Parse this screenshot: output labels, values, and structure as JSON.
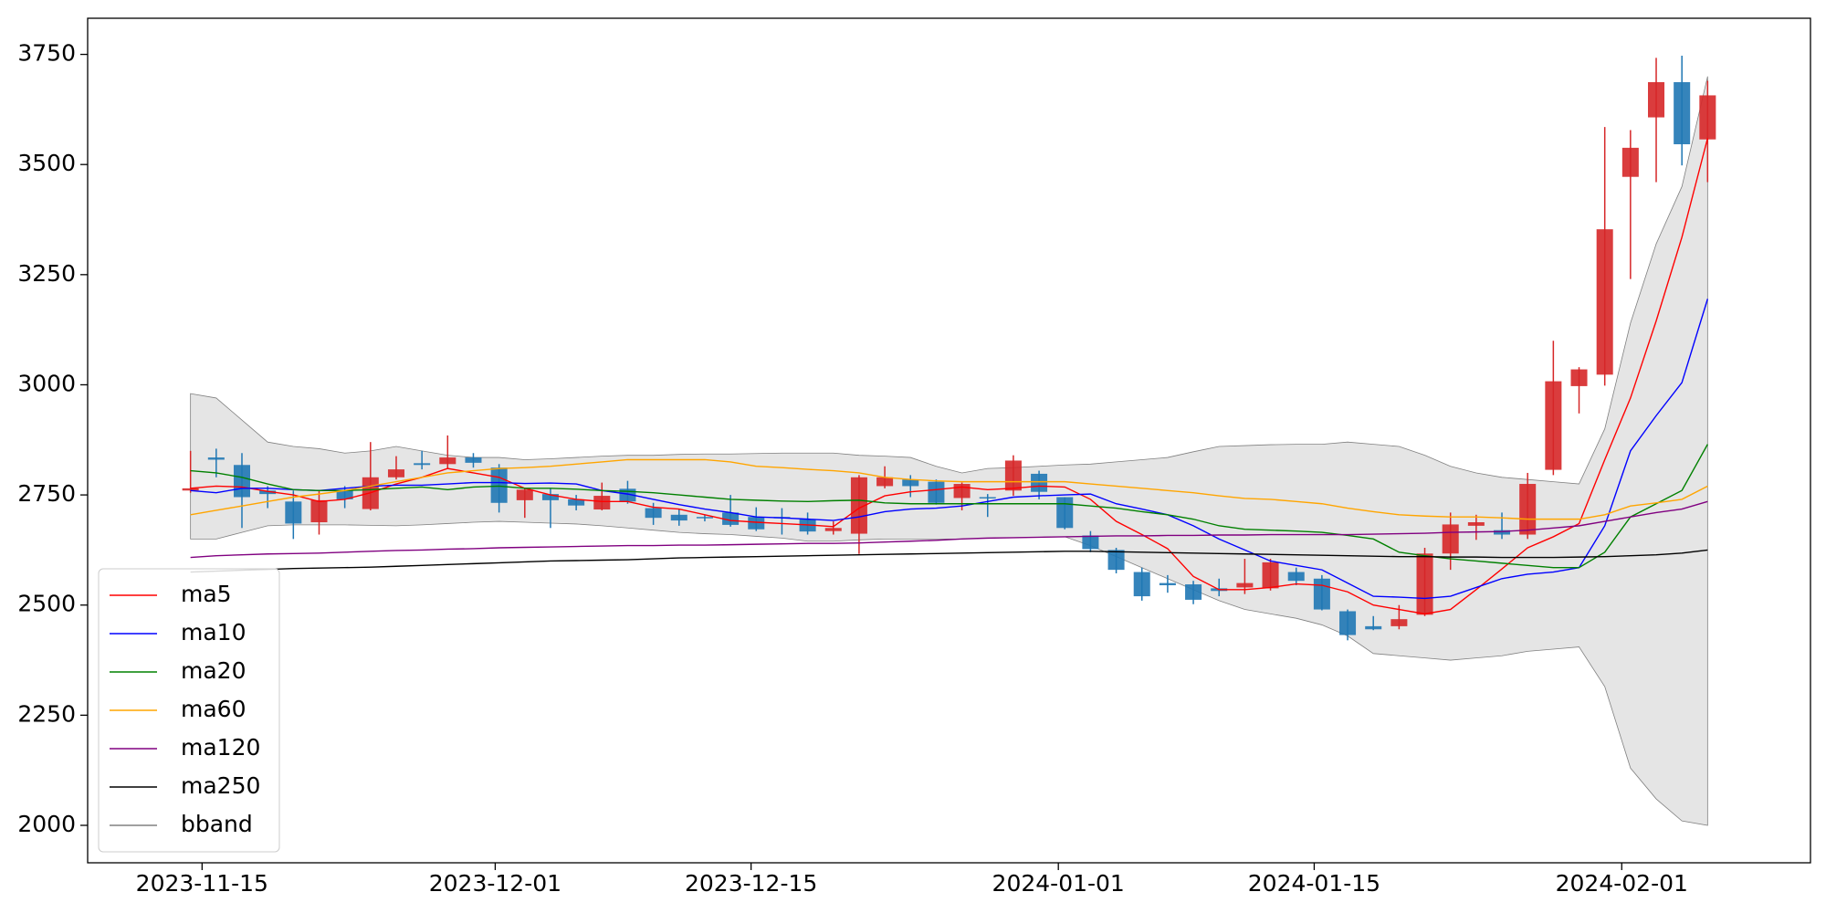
{
  "chart_data": {
    "type": "candlestick",
    "x": [
      0,
      1,
      2,
      3,
      4,
      5,
      6,
      7,
      8,
      9,
      10,
      11,
      12,
      13,
      14,
      15,
      16,
      17,
      18,
      19,
      20,
      21,
      22,
      23,
      24,
      25,
      26,
      27,
      28,
      29,
      30,
      31,
      32,
      33,
      34,
      35,
      36,
      37,
      38,
      39,
      40,
      41,
      42,
      43,
      44,
      45,
      46,
      47,
      48,
      49,
      50,
      51,
      52,
      53,
      54,
      55,
      56,
      57,
      58,
      59
    ],
    "open": [
      2760,
      2835,
      2818,
      2760,
      2735,
      2688,
      2760,
      2718,
      2790,
      2822,
      2820,
      2835,
      2812,
      2738,
      2752,
      2740,
      2717,
      2764,
      2720,
      2705,
      2700,
      2710,
      2700,
      2700,
      2695,
      2668,
      2662,
      2770,
      2785,
      2780,
      2743,
      2745,
      2760,
      2798,
      2745,
      2658,
      2625,
      2575,
      2550,
      2547,
      2538,
      2540,
      2538,
      2575,
      2560,
      2486,
      2452,
      2452,
      2478,
      2617,
      2680,
      2670,
      2660,
      2807,
      2997,
      3023,
      3472,
      3607,
      3687,
      3557
    ],
    "high": [
      2850,
      2855,
      2845,
      2770,
      2760,
      2760,
      2770,
      2870,
      2838,
      2850,
      2885,
      2845,
      2820,
      2765,
      2765,
      2750,
      2778,
      2782,
      2732,
      2718,
      2705,
      2750,
      2722,
      2720,
      2710,
      2690,
      2795,
      2815,
      2795,
      2785,
      2778,
      2752,
      2840,
      2805,
      2745,
      2668,
      2630,
      2585,
      2568,
      2555,
      2560,
      2605,
      2605,
      2585,
      2568,
      2490,
      2475,
      2500,
      2630,
      2710,
      2705,
      2710,
      2800,
      3100,
      3040,
      3585,
      3578,
      3742,
      3747,
      3690
    ],
    "low": [
      2755,
      2790,
      2675,
      2720,
      2650,
      2660,
      2720,
      2715,
      2785,
      2808,
      2810,
      2812,
      2710,
      2698,
      2675,
      2715,
      2715,
      2730,
      2682,
      2680,
      2690,
      2678,
      2668,
      2660,
      2660,
      2660,
      2616,
      2765,
      2745,
      2728,
      2715,
      2700,
      2748,
      2740,
      2672,
      2620,
      2572,
      2510,
      2528,
      2502,
      2520,
      2525,
      2533,
      2545,
      2488,
      2420,
      2443,
      2445,
      2475,
      2580,
      2648,
      2650,
      2650,
      2795,
      2935,
      2998,
      3240,
      3460,
      3498,
      3460
    ],
    "close": [
      2765,
      2830,
      2745,
      2752,
      2685,
      2738,
      2740,
      2790,
      2808,
      2818,
      2835,
      2823,
      2732,
      2762,
      2738,
      2726,
      2748,
      2735,
      2698,
      2692,
      2697,
      2682,
      2672,
      2697,
      2667,
      2675,
      2790,
      2790,
      2770,
      2732,
      2775,
      2742,
      2828,
      2757,
      2675,
      2627,
      2580,
      2520,
      2545,
      2512,
      2532,
      2550,
      2597,
      2555,
      2490,
      2432,
      2445,
      2468,
      2617,
      2683,
      2688,
      2660,
      2775,
      3008,
      3035,
      3353,
      3538,
      3687,
      3546,
      3657
    ],
    "up_color": "#d62728",
    "down_color": "#1f77b4",
    "series": [
      {
        "name": "ma5",
        "color": "#ff0000",
        "values": [
          2765,
          2770,
          2768,
          2758,
          2750,
          2735,
          2740,
          2755,
          2775,
          2790,
          2810,
          2800,
          2790,
          2765,
          2750,
          2740,
          2735,
          2735,
          2722,
          2718,
          2705,
          2692,
          2688,
          2685,
          2682,
          2678,
          2720,
          2748,
          2757,
          2762,
          2768,
          2762,
          2765,
          2770,
          2768,
          2740,
          2690,
          2660,
          2628,
          2565,
          2535,
          2535,
          2540,
          2548,
          2545,
          2530,
          2500,
          2490,
          2480,
          2490,
          2535,
          2582,
          2630,
          2655,
          2685,
          2830,
          2970,
          3145,
          3335,
          3560
        ]
      },
      {
        "name": "ma10",
        "color": "#0000ff",
        "values": [
          2760,
          2755,
          2765,
          2765,
          2762,
          2760,
          2765,
          2770,
          2772,
          2772,
          2775,
          2778,
          2778,
          2776,
          2777,
          2775,
          2760,
          2752,
          2740,
          2728,
          2718,
          2710,
          2700,
          2698,
          2695,
          2692,
          2700,
          2712,
          2718,
          2720,
          2725,
          2735,
          2745,
          2748,
          2750,
          2752,
          2730,
          2718,
          2705,
          2680,
          2650,
          2625,
          2600,
          2590,
          2580,
          2550,
          2520,
          2518,
          2515,
          2520,
          2540,
          2560,
          2570,
          2575,
          2585,
          2680,
          2850,
          2930,
          3005,
          3195
        ]
      },
      {
        "name": "ma20",
        "color": "#008000",
        "values": [
          2805,
          2800,
          2790,
          2775,
          2762,
          2760,
          2760,
          2762,
          2765,
          2768,
          2762,
          2768,
          2770,
          2765,
          2765,
          2763,
          2760,
          2758,
          2755,
          2750,
          2745,
          2740,
          2738,
          2736,
          2735,
          2737,
          2738,
          2732,
          2730,
          2730,
          2730,
          2730,
          2730,
          2730,
          2730,
          2725,
          2720,
          2712,
          2705,
          2695,
          2680,
          2672,
          2670,
          2668,
          2665,
          2658,
          2650,
          2620,
          2612,
          2605,
          2600,
          2595,
          2590,
          2585,
          2585,
          2620,
          2700,
          2730,
          2760,
          2865
        ]
      },
      {
        "name": "ma60",
        "color": "#ffa500",
        "values": [
          2705,
          2715,
          2725,
          2735,
          2745,
          2752,
          2760,
          2770,
          2780,
          2790,
          2800,
          2805,
          2810,
          2812,
          2815,
          2820,
          2825,
          2830,
          2830,
          2830,
          2830,
          2825,
          2815,
          2812,
          2808,
          2805,
          2800,
          2790,
          2785,
          2782,
          2780,
          2780,
          2780,
          2780,
          2780,
          2775,
          2770,
          2765,
          2760,
          2755,
          2748,
          2742,
          2740,
          2735,
          2730,
          2720,
          2712,
          2705,
          2702,
          2700,
          2700,
          2698,
          2695,
          2695,
          2695,
          2705,
          2725,
          2732,
          2740,
          2770
        ]
      },
      {
        "name": "ma120",
        "color": "#800080",
        "values": [
          2608,
          2612,
          2614,
          2616,
          2617,
          2618,
          2620,
          2622,
          2624,
          2625,
          2627,
          2628,
          2630,
          2631,
          2632,
          2633,
          2634,
          2635,
          2635,
          2636,
          2636,
          2637,
          2638,
          2639,
          2640,
          2640,
          2641,
          2643,
          2645,
          2647,
          2650,
          2652,
          2653,
          2654,
          2655,
          2656,
          2657,
          2657,
          2658,
          2658,
          2659,
          2659,
          2660,
          2660,
          2660,
          2660,
          2661,
          2662,
          2663,
          2665,
          2666,
          2667,
          2670,
          2675,
          2680,
          2690,
          2700,
          2710,
          2718,
          2735
        ]
      },
      {
        "name": "ma250",
        "color": "#000000",
        "values": [
          2575,
          2577,
          2579,
          2581,
          2583,
          2584,
          2585,
          2586,
          2588,
          2590,
          2592,
          2594,
          2596,
          2598,
          2600,
          2601,
          2602,
          2603,
          2605,
          2607,
          2608,
          2609,
          2610,
          2611,
          2612,
          2613,
          2614,
          2615,
          2616,
          2617,
          2618,
          2619,
          2620,
          2621,
          2622,
          2622,
          2621,
          2620,
          2619,
          2618,
          2617,
          2616,
          2615,
          2614,
          2613,
          2612,
          2611,
          2610,
          2610,
          2609,
          2609,
          2608,
          2608,
          2608,
          2609,
          2610,
          2612,
          2614,
          2618,
          2625
        ]
      }
    ],
    "band": {
      "name": "bband",
      "color": "#808080",
      "fill": "#e5e5e5",
      "upper": [
        2980,
        2970,
        2920,
        2870,
        2860,
        2855,
        2845,
        2850,
        2860,
        2850,
        2840,
        2835,
        2835,
        2830,
        2832,
        2835,
        2838,
        2840,
        2840,
        2842,
        2843,
        2843,
        2844,
        2845,
        2845,
        2845,
        2840,
        2838,
        2835,
        2815,
        2800,
        2810,
        2812,
        2815,
        2818,
        2820,
        2825,
        2830,
        2835,
        2848,
        2860,
        2862,
        2864,
        2865,
        2865,
        2870,
        2865,
        2860,
        2840,
        2815,
        2800,
        2790,
        2785,
        2780,
        2775,
        2900,
        3140,
        3320,
        3450,
        3700
      ],
      "lower": [
        2650,
        2650,
        2665,
        2680,
        2682,
        2682,
        2682,
        2681,
        2680,
        2682,
        2685,
        2688,
        2690,
        2688,
        2686,
        2684,
        2680,
        2675,
        2670,
        2665,
        2662,
        2660,
        2656,
        2652,
        2645,
        2645,
        2648,
        2650,
        2650,
        2650,
        2650,
        2652,
        2653,
        2654,
        2655,
        2635,
        2610,
        2585,
        2560,
        2535,
        2510,
        2490,
        2480,
        2470,
        2455,
        2430,
        2390,
        2385,
        2380,
        2375,
        2380,
        2385,
        2395,
        2400,
        2405,
        2315,
        2130,
        2060,
        2010,
        2000
      ]
    },
    "xlim": [
      -4,
      63
    ],
    "xticks": [
      {
        "value": 0.45,
        "label": "2023-11-15"
      },
      {
        "value": 11.85,
        "label": "2023-12-01"
      },
      {
        "value": 21.8,
        "label": "2023-12-15"
      },
      {
        "value": 33.75,
        "label": "2024-01-01"
      },
      {
        "value": 43.7,
        "label": "2024-01-15"
      },
      {
        "value": 55.66,
        "label": "2024-02-01"
      }
    ],
    "ylim": [
      1915,
      3832
    ],
    "yticks": [
      2000,
      2250,
      2500,
      2750,
      3000,
      3250,
      3500,
      3750
    ],
    "legend": "lower left"
  }
}
